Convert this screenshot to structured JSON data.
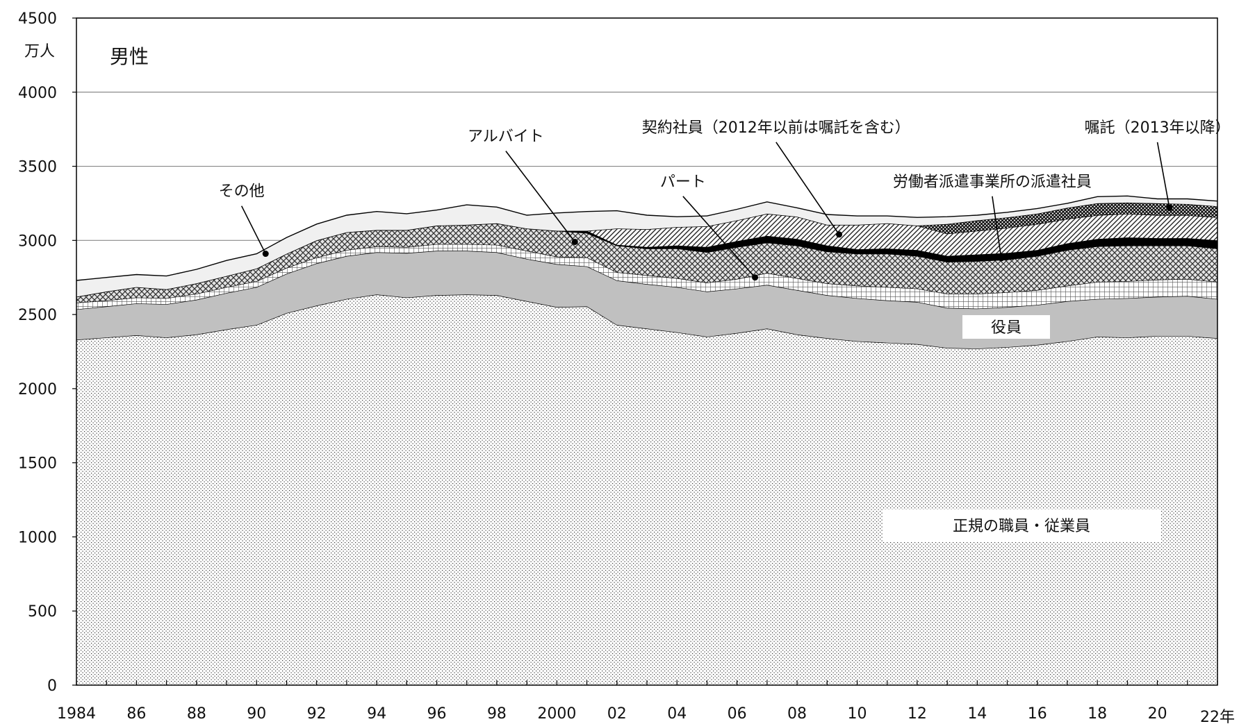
{
  "chart_data": {
    "type": "area",
    "stacked": true,
    "title": "男性",
    "ylabel": "万人",
    "xlabel": "",
    "ylim": [
      0,
      4500
    ],
    "yticks": [
      0,
      500,
      1000,
      1500,
      2000,
      2500,
      3000,
      3500,
      4000,
      4500
    ],
    "xlim": [
      1984,
      2022
    ],
    "x_tick_labels": [
      {
        "x": 1984,
        "label": "1984"
      },
      {
        "x": 1986,
        "label": "86"
      },
      {
        "x": 1988,
        "label": "88"
      },
      {
        "x": 1990,
        "label": "90"
      },
      {
        "x": 1992,
        "label": "92"
      },
      {
        "x": 1994,
        "label": "94"
      },
      {
        "x": 1996,
        "label": "96"
      },
      {
        "x": 1998,
        "label": "98"
      },
      {
        "x": 2000,
        "label": "2000"
      },
      {
        "x": 2002,
        "label": "02"
      },
      {
        "x": 2004,
        "label": "04"
      },
      {
        "x": 2006,
        "label": "06"
      },
      {
        "x": 2008,
        "label": "08"
      },
      {
        "x": 2010,
        "label": "10"
      },
      {
        "x": 2012,
        "label": "12"
      },
      {
        "x": 2014,
        "label": "14"
      },
      {
        "x": 2016,
        "label": "16"
      },
      {
        "x": 2018,
        "label": "18"
      },
      {
        "x": 2020,
        "label": "20"
      },
      {
        "x": 2022,
        "label": "22年"
      }
    ],
    "grid": "horizontal",
    "x": [
      1984,
      1985,
      1986,
      1987,
      1988,
      1989,
      1990,
      1991,
      1992,
      1993,
      1994,
      1995,
      1996,
      1997,
      1998,
      1999,
      2000,
      2001,
      2002,
      2003,
      2004,
      2005,
      2006,
      2007,
      2008,
      2009,
      2010,
      2011,
      2012,
      2013,
      2014,
      2015,
      2016,
      2017,
      2018,
      2019,
      2020,
      2021,
      2022
    ],
    "series": [
      {
        "name": "正規の職員・従業員",
        "fill": "dots",
        "values": [
          2330,
          2345,
          2360,
          2345,
          2365,
          2400,
          2430,
          2510,
          2560,
          2605,
          2635,
          2615,
          2630,
          2635,
          2630,
          2590,
          2550,
          2555,
          2430,
          2405,
          2380,
          2350,
          2375,
          2405,
          2365,
          2340,
          2320,
          2310,
          2300,
          2275,
          2270,
          2280,
          2295,
          2320,
          2350,
          2345,
          2355,
          2355,
          2340
        ]
      },
      {
        "name": "役員",
        "fill": "gray",
        "values": [
          205,
          210,
          215,
          225,
          235,
          245,
          255,
          265,
          285,
          290,
          285,
          300,
          300,
          295,
          290,
          285,
          290,
          270,
          300,
          300,
          305,
          305,
          300,
          295,
          300,
          290,
          290,
          285,
          285,
          270,
          270,
          270,
          270,
          270,
          255,
          265,
          265,
          270,
          265
        ]
      },
      {
        "name": "パート",
        "fill": "grid",
        "values": [
          45,
          40,
          40,
          40,
          40,
          40,
          40,
          40,
          40,
          40,
          40,
          40,
          45,
          45,
          50,
          55,
          50,
          60,
          55,
          60,
          60,
          60,
          65,
          80,
          80,
          80,
          85,
          90,
          90,
          95,
          100,
          100,
          100,
          105,
          115,
          115,
          115,
          115,
          115
        ]
      },
      {
        "name": "アルバイト",
        "fill": "crosshatch",
        "values": [
          40,
          60,
          70,
          60,
          70,
          75,
          85,
          95,
          115,
          120,
          110,
          115,
          125,
          130,
          145,
          150,
          175,
          165,
          180,
          180,
          200,
          205,
          215,
          205,
          220,
          215,
          215,
          225,
          220,
          215,
          220,
          220,
          230,
          240,
          240,
          240,
          230,
          225,
          225
        ]
      },
      {
        "name": "労働者派遣事業所の派遣社員",
        "fill": "black",
        "values": [
          0,
          0,
          0,
          0,
          0,
          0,
          0,
          0,
          0,
          0,
          0,
          0,
          0,
          0,
          0,
          0,
          0,
          15,
          5,
          10,
          20,
          35,
          40,
          45,
          45,
          40,
          30,
          35,
          40,
          40,
          45,
          45,
          40,
          45,
          50,
          55,
          50,
          50,
          55
        ]
      },
      {
        "name": "契約社員（2012年以前は嘱託を含む）",
        "fill": "diagonal",
        "values": [
          0,
          0,
          0,
          0,
          0,
          0,
          0,
          0,
          0,
          0,
          0,
          0,
          0,
          0,
          0,
          0,
          0,
          0,
          110,
          120,
          125,
          140,
          140,
          150,
          150,
          140,
          165,
          170,
          165,
          150,
          160,
          170,
          175,
          165,
          160,
          160,
          155,
          155,
          155
        ]
      },
      {
        "name": "嘱託（2013年以降）",
        "fill": "dense",
        "values": [
          0,
          0,
          0,
          0,
          0,
          0,
          0,
          0,
          0,
          0,
          0,
          0,
          0,
          0,
          0,
          0,
          0,
          0,
          0,
          0,
          0,
          0,
          0,
          0,
          0,
          0,
          0,
          0,
          0,
          65,
          70,
          70,
          70,
          75,
          80,
          75,
          80,
          75,
          75
        ]
      },
      {
        "name": "その他",
        "fill": "light",
        "values": [
          110,
          95,
          85,
          90,
          95,
          105,
          100,
          110,
          110,
          115,
          125,
          110,
          105,
          135,
          110,
          90,
          120,
          130,
          120,
          95,
          70,
          70,
          75,
          80,
          60,
          70,
          60,
          50,
          55,
          50,
          35,
          35,
          35,
          30,
          45,
          45,
          30,
          35,
          35
        ]
      }
    ],
    "labels": [
      {
        "series": 0,
        "text": "正規の職員・従業員",
        "boxed": true
      },
      {
        "series": 1,
        "text": "役員",
        "boxed": true
      },
      {
        "series": 2,
        "text": "パート",
        "pointer": [
          2006.6,
          2750
        ],
        "anchor": [
          2004.2,
          3335
        ]
      },
      {
        "series": 3,
        "text": "アルバイト",
        "pointer": [
          2000.6,
          2990
        ],
        "anchor": [
          1998.3,
          3640
        ]
      },
      {
        "series": 4,
        "text": "労働者派遣事業所の派遣社員",
        "pointer": [
          2014.8,
          2880
        ],
        "anchor": [
          2014.5,
          3335
        ]
      },
      {
        "series": 5,
        "text": "契約社員（2012年以前は嘱託を含む）",
        "pointer": [
          2009.4,
          3040
        ],
        "anchor": [
          2007.3,
          3700
        ]
      },
      {
        "series": 6,
        "text": "嘱託（2013年以降）",
        "pointer": [
          2020.4,
          3220
        ],
        "anchor": [
          2020.0,
          3700
        ]
      },
      {
        "series": 7,
        "text": "その他",
        "pointer": [
          1990.3,
          2910
        ],
        "anchor": [
          1989.5,
          3270
        ]
      }
    ]
  }
}
